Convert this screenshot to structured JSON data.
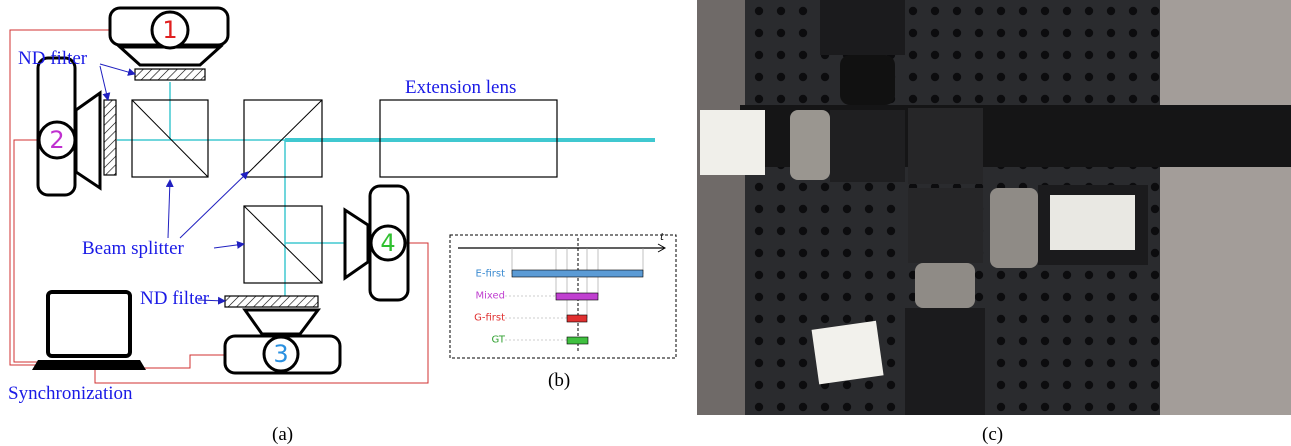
{
  "panel_a": {
    "cameras": [
      "1",
      "2",
      "3",
      "4"
    ],
    "nd_filter_top": "ND filter",
    "nd_filter_bottom": "ND filter",
    "extension_lens": "Extension lens",
    "beam_splitter": "Beam splitter",
    "synchronization": "Synchronization",
    "caption": "(a)"
  },
  "panel_b": {
    "axis_label": "t",
    "rows": [
      "E-first",
      "Mixed",
      "G-first",
      "GT"
    ],
    "caption": "(b)"
  },
  "panel_c": {
    "caption": "(c)"
  }
}
